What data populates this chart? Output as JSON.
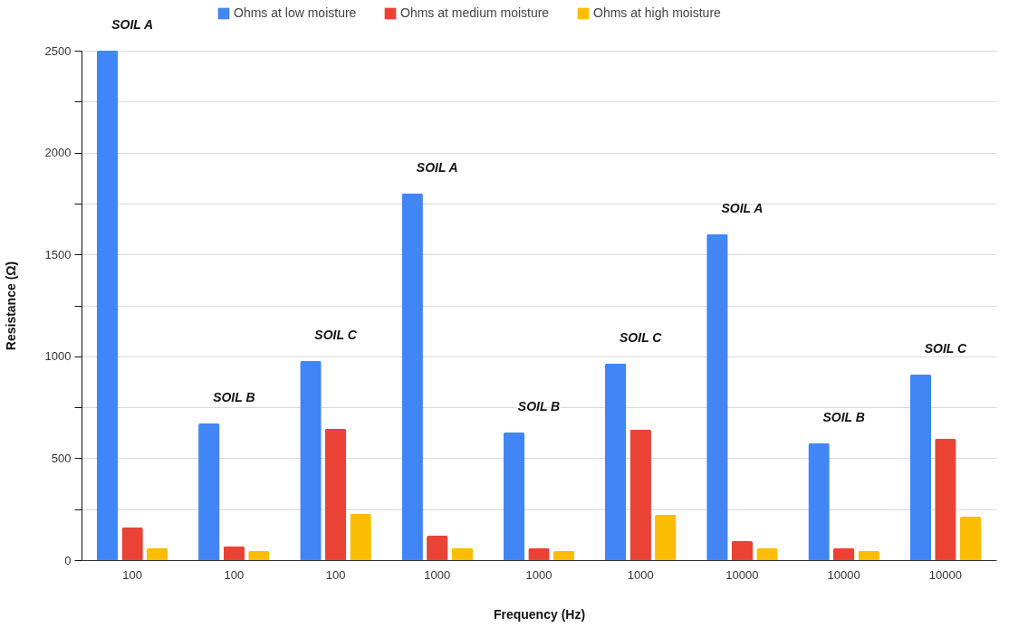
{
  "chart_data": {
    "type": "bar",
    "xlabel": "Frequency (Hz)",
    "ylabel": "Resistance (Ω)",
    "categories": [
      "100",
      "100",
      "100",
      "1000",
      "1000",
      "1000",
      "10000",
      "10000",
      "10000"
    ],
    "series": [
      {
        "name": "Ohms at low moisture",
        "color": "#4285f4",
        "values": [
          2500,
          670,
          977,
          1800,
          626,
          964,
          1600,
          573,
          910
        ]
      },
      {
        "name": "Ohms at medium moisture",
        "color": "#ea4335",
        "values": [
          160,
          67,
          644,
          120,
          58,
          640,
          93,
          58,
          595
        ]
      },
      {
        "name": "Ohms at high moisture",
        "color": "#fbbc04",
        "values": [
          58,
          44,
          226,
          58,
          44,
          222,
          58,
          44,
          213
        ]
      }
    ],
    "ylim": [
      0,
      2500
    ],
    "yticks": [
      0,
      {
        "value": 250,
        "label": null
      },
      500,
      {
        "value": 750,
        "label": null
      },
      1000,
      {
        "value": 1250,
        "label": null
      },
      1500,
      {
        "value": 1750,
        "label": null
      },
      2000,
      {
        "value": 2250,
        "label": null
      },
      2500
    ],
    "grid": true,
    "legend": "top",
    "annotations": [
      "SOIL A",
      "SOIL B",
      "SOIL C",
      "SOIL A",
      "SOIL B",
      "SOIL C",
      "SOIL A",
      "SOIL B",
      "SOIL C"
    ]
  }
}
